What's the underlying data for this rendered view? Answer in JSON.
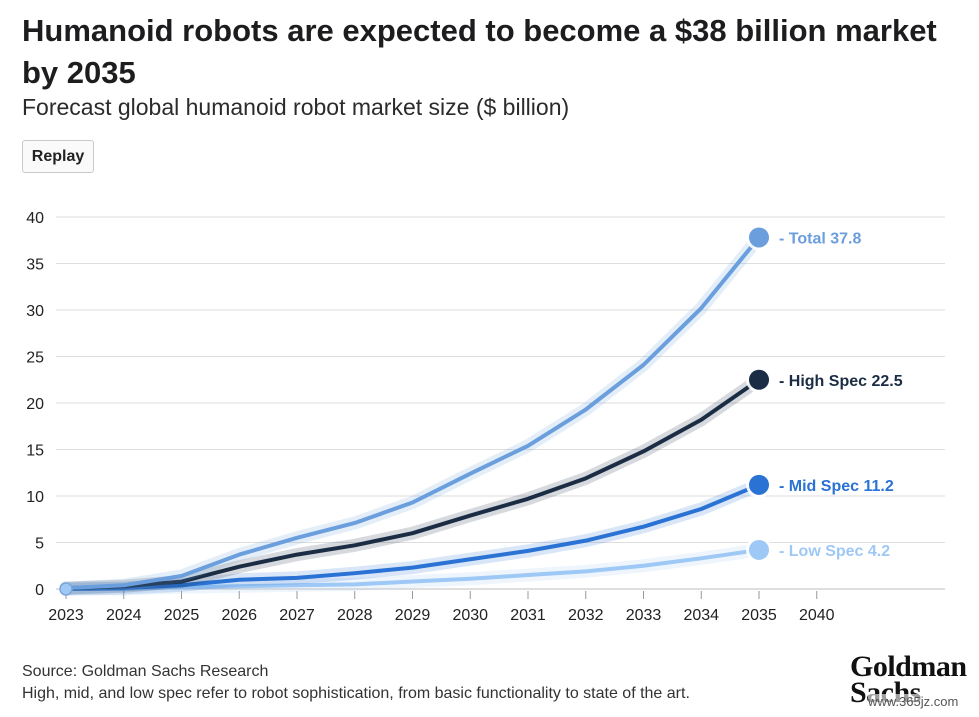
{
  "header": {
    "title": "Humanoid robots are expected to become a $38 billion market by 2035",
    "subtitle": "Forecast global humanoid robot market size ($ billion)",
    "replay_label": "Replay"
  },
  "footer": {
    "source": "Source: Goldman Sachs Research",
    "note": "High, mid, and low spec refer to robot sophistication, from basic functionality to state of the art.",
    "logo_line1": "Goldman",
    "logo_line2": "Sachs",
    "watermark": "www.365jz.com"
  },
  "chart_data": {
    "type": "line",
    "title": "Humanoid robots are expected to become a $38 billion market by 2035",
    "subtitle": "Forecast global humanoid robot market size ($ billion)",
    "x": [
      "2023",
      "2024",
      "2025",
      "2026",
      "2027",
      "2028",
      "2029",
      "2030",
      "2031",
      "2032",
      "2033",
      "2034",
      "2035"
    ],
    "x_ticks": [
      "2023",
      "2024",
      "2025",
      "2026",
      "2027",
      "2028",
      "2029",
      "2030",
      "2031",
      "2032",
      "2033",
      "2034",
      "2035",
      "2040"
    ],
    "y_ticks": [
      0,
      5,
      10,
      15,
      20,
      25,
      30,
      35,
      40
    ],
    "ylim": [
      0,
      40
    ],
    "grid": "horizontal",
    "series": [
      {
        "name": "Total",
        "end_label": "Total 37.8",
        "color": "#6a9edd",
        "values": [
          0.1,
          0.4,
          1.4,
          3.7,
          5.5,
          7.1,
          9.3,
          12.4,
          15.4,
          19.3,
          24.1,
          30.2,
          37.8
        ]
      },
      {
        "name": "High Spec",
        "end_label": "High Spec 22.5",
        "color": "#1b2d45",
        "values": [
          0.1,
          0.3,
          0.8,
          2.4,
          3.7,
          4.7,
          6.0,
          7.9,
          9.7,
          11.9,
          14.8,
          18.2,
          22.5
        ]
      },
      {
        "name": "Mid Spec",
        "end_label": "Mid Spec 11.2",
        "color": "#2a72d4",
        "values": [
          0.0,
          0.1,
          0.4,
          1.0,
          1.2,
          1.7,
          2.3,
          3.2,
          4.1,
          5.2,
          6.7,
          8.6,
          11.2
        ]
      },
      {
        "name": "Low Spec",
        "end_label": "Low Spec 4.2",
        "color": "#9ec8f5",
        "values": [
          0.0,
          0.0,
          0.2,
          0.3,
          0.4,
          0.5,
          0.8,
          1.1,
          1.5,
          1.9,
          2.5,
          3.3,
          4.2
        ]
      }
    ]
  }
}
